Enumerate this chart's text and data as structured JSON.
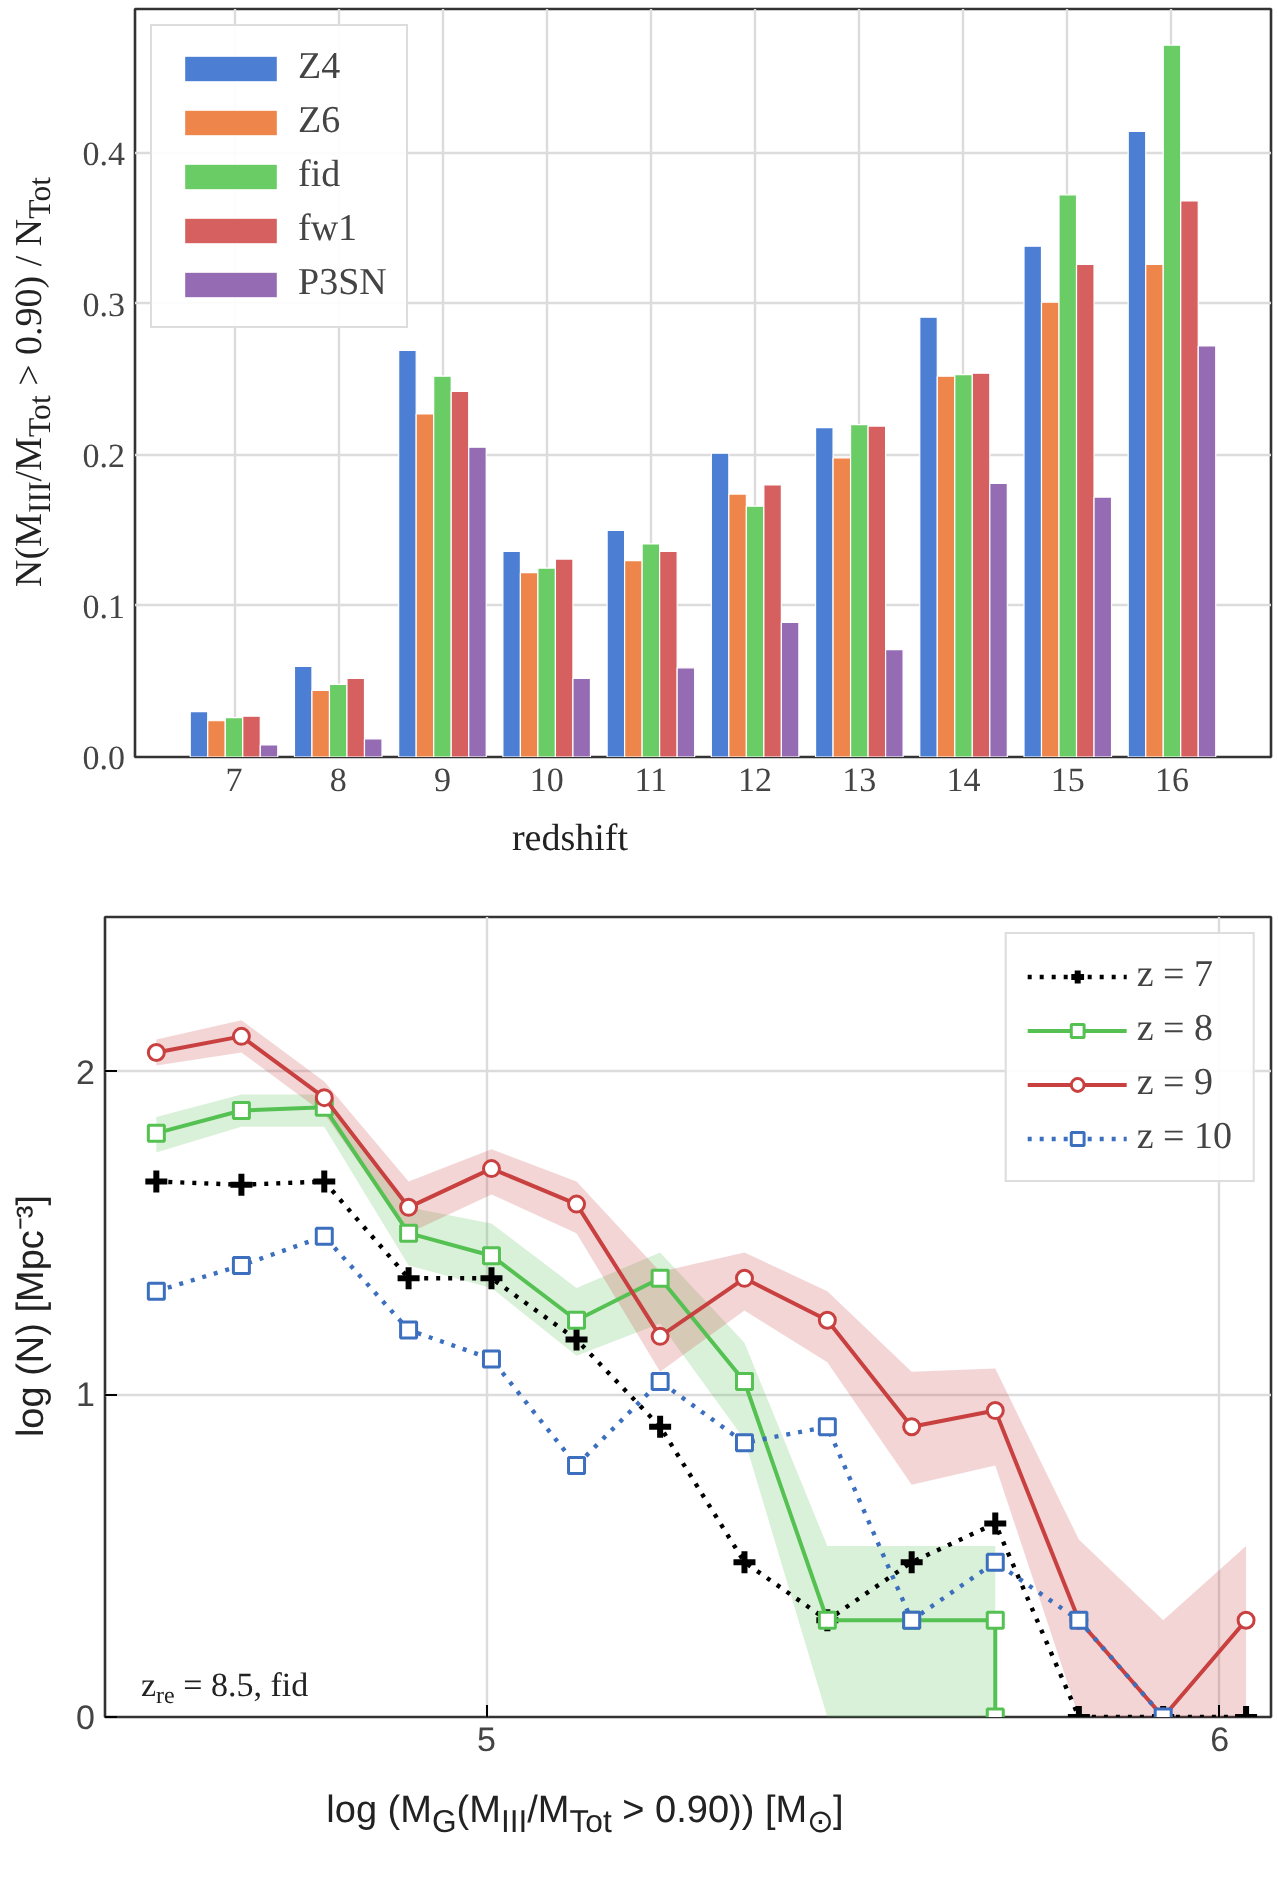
{
  "chart_data": [
    {
      "type": "bar",
      "xlabel": "redshift",
      "ylabel": "N(M$_{III}$/M$_{Tot}$ > 0.90) / N$_{Tot}$",
      "categories": [
        "7",
        "8",
        "9",
        "10",
        "11",
        "12",
        "13",
        "14",
        "15",
        "16"
      ],
      "series": [
        {
          "name": "Z4",
          "color": "#4c7fd4",
          "values": [
            0.03,
            0.06,
            0.269,
            0.136,
            0.15,
            0.201,
            0.218,
            0.291,
            0.338,
            0.414
          ]
        },
        {
          "name": "Z6",
          "color": "#ee854a",
          "values": [
            0.024,
            0.044,
            0.227,
            0.122,
            0.13,
            0.174,
            0.198,
            0.252,
            0.301,
            0.326
          ]
        },
        {
          "name": "fid",
          "color": "#6acc64",
          "values": [
            0.026,
            0.048,
            0.252,
            0.125,
            0.141,
            0.166,
            0.22,
            0.253,
            0.372,
            0.471
          ]
        },
        {
          "name": "fw1",
          "color": "#d65f5f",
          "values": [
            0.027,
            0.052,
            0.242,
            0.131,
            0.136,
            0.18,
            0.219,
            0.254,
            0.326,
            0.368
          ]
        },
        {
          "name": "P3SN",
          "color": "#956cb4",
          "values": [
            0.008,
            0.012,
            0.205,
            0.052,
            0.059,
            0.089,
            0.071,
            0.181,
            0.172,
            0.272
          ]
        }
      ],
      "ylim": [
        0,
        0.495
      ],
      "yticks": [
        {
          "value": 0,
          "label": "0.0"
        },
        0.1,
        0.2,
        0.3,
        0.4
      ],
      "grid": true,
      "legend": "top left"
    },
    {
      "type": "line",
      "xlabel": "log (M$_{G}$(M$_{III}$/M$_{Tot}$ > 0.90)) [M$_{⊙}$]",
      "ylabel": "log (N) [Mpc⁻³]",
      "x": [
        4.55,
        4.666,
        4.779,
        4.894,
        5.007,
        5.123,
        5.237,
        5.352,
        5.465,
        5.58,
        5.694,
        5.808,
        5.923,
        6.036
      ],
      "series": [
        {
          "name": "z = 7",
          "color": "#000000",
          "marker": "cross",
          "line_style": "dotted",
          "values": [
            1.66,
            1.65,
            1.66,
            1.36,
            1.36,
            1.17,
            0.9,
            0.48,
            0.3,
            0.48,
            0.6,
            0,
            0,
            0
          ]
        },
        {
          "name": "z = 8",
          "color": "#55c152",
          "marker": "square",
          "line_style": "solid",
          "x": [
            4.55,
            4.666,
            4.779,
            4.894,
            5.007,
            5.123,
            5.237,
            5.352,
            5.465,
            5.58,
            5.694,
            5.694
          ],
          "values": [
            1.81,
            1.88,
            1.89,
            1.5,
            1.43,
            1.23,
            1.36,
            1.04,
            0.3,
            0.3,
            0.3,
            0
          ],
          "upper": [
            1.86,
            1.93,
            1.93,
            1.58,
            1.53,
            1.33,
            1.44,
            1.16,
            0.53,
            0.53,
            0.53,
            null
          ],
          "lower": [
            1.75,
            1.83,
            1.83,
            1.4,
            1.33,
            1.12,
            1.22,
            0.86,
            0,
            0,
            0,
            null
          ]
        },
        {
          "name": "z = 9",
          "color": "#c8403f",
          "marker": "circle",
          "line_style": "solid",
          "values": [
            2.06,
            2.11,
            1.92,
            1.58,
            1.7,
            1.59,
            1.18,
            1.36,
            1.23,
            0.9,
            0.95,
            0.3,
            0,
            0.3
          ],
          "upper": [
            2.1,
            2.16,
            1.97,
            1.66,
            1.76,
            1.66,
            1.38,
            1.44,
            1.32,
            1.07,
            1.08,
            0.55,
            0.3,
            0.53
          ],
          "lower": [
            2.02,
            2.06,
            1.87,
            1.5,
            1.62,
            1.5,
            1.07,
            1.26,
            1.1,
            0.72,
            0.78,
            0,
            0,
            0
          ]
        },
        {
          "name": "z = 10",
          "color": "#3d6fbf",
          "marker": "square",
          "line_style": "dotted",
          "values": [
            1.32,
            1.4,
            1.49,
            1.2,
            1.11,
            0.78,
            1.04,
            0.85,
            0.9,
            0.3,
            0.48,
            0.3,
            0,
            null
          ]
        }
      ],
      "xlim": [
        4.48,
        6.07
      ],
      "xticks": [
        5,
        6
      ],
      "ylim": [
        0,
        2.48
      ],
      "yticks": [
        0,
        1,
        2
      ],
      "grid": true,
      "legend": "top right",
      "annotations": [
        "z$_{re}$ = 8.5, fid"
      ]
    }
  ]
}
